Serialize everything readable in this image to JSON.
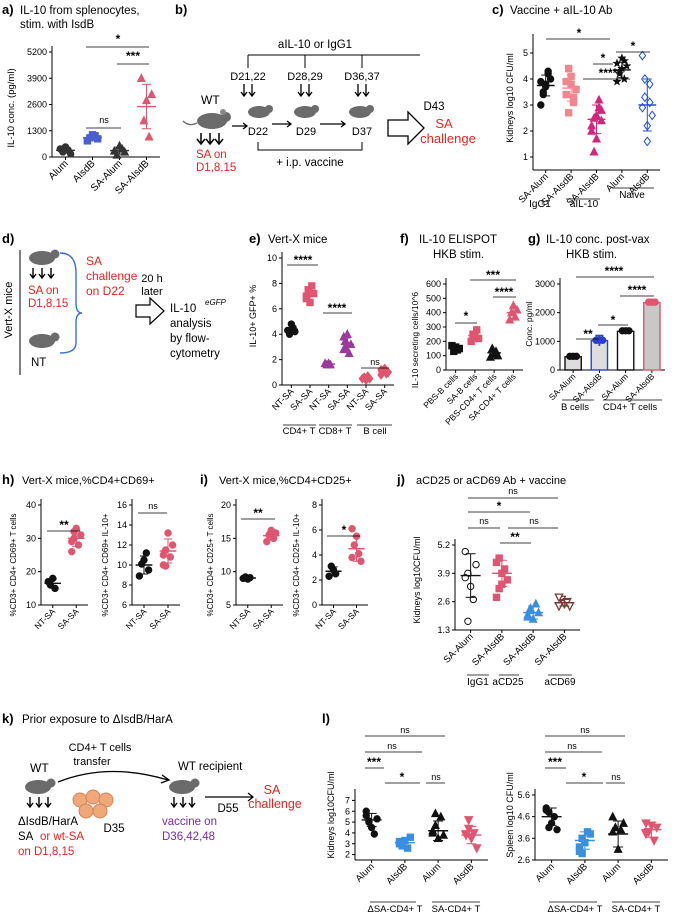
{
  "panels": {
    "a": {
      "letter": "a)",
      "title_l1": "IL-10 from splenocytes,",
      "title_l2": "stim. with IsdB",
      "ylabel": "IL-10 conc. (pg/ml)",
      "cats": [
        "Alum",
        "AIsdB",
        "SA-Alum",
        "SA-AIsdB"
      ],
      "sig": [
        "ns",
        "*",
        "***"
      ]
    },
    "b": {
      "letter": "b)",
      "wt": "WT",
      "sa_on": "SA on",
      "sa_days": "D1,8,15",
      "ab": "aIL-10 or IgG1",
      "inj_days": [
        "D21,22",
        "D28,29",
        "D36,37"
      ],
      "vax_days": [
        "D22",
        "D29",
        "D37"
      ],
      "d43": "D43",
      "challenge_l1": "SA",
      "challenge_l2": "challenge",
      "vaccine": "+ i.p. vaccine"
    },
    "c": {
      "letter": "c)",
      "title": "Vaccine + aIL-10 Ab",
      "ylabel": "Kidneys log10 CFU/ml",
      "cats": [
        "SA-Alum",
        "SA-AIsdB",
        "SA-AIsdB",
        "Alum",
        "AIsdB"
      ],
      "groups": [
        "IgG1",
        "aIL-10",
        "Naive"
      ],
      "sig": [
        "*",
        "*",
        "****",
        "*"
      ]
    },
    "d": {
      "letter": "d)",
      "side": "Vert-X mice",
      "sa_on": "SA on",
      "sa_days": "D1,8,15",
      "nt": "NT",
      "challenge_l1": "SA",
      "challenge_l2": "challenge",
      "challenge_l3": "on D22",
      "later_l1": "20 h",
      "later_l2": "later",
      "il10": "IL-10",
      "egfp": "eGFP",
      "analysis": [
        "analysis",
        "by flow-",
        "cytometry"
      ]
    },
    "e": {
      "letter": "e)",
      "title": "Vert-X mice",
      "ylabel": "IL-10+ GFP+ %",
      "cats": [
        "NT-SA",
        "SA-SA",
        "NT-SA",
        "SA-SA",
        "NT-SA",
        "SA-SA"
      ],
      "groups": [
        "CD4+ T",
        "CD8+ T",
        "B cell"
      ],
      "sig": [
        "****",
        "****",
        "ns"
      ]
    },
    "f": {
      "letter": "f)",
      "title_l1": "IL-10 ELISPOT",
      "title_l2": "HKB stim.",
      "ylabel": "IL-10 secreting cells/10^6",
      "cats": [
        "PBS-B cells",
        "SA-B cells",
        "PBS-CD4+ T cells",
        "SA-CD4+ T cells"
      ],
      "sig": [
        "*",
        "***",
        "****"
      ]
    },
    "g": {
      "letter": "g)",
      "title_l1": "IL-10 conc. post-vax",
      "title_l2": "HKB stim.",
      "ylabel": "Conc. pg/ml",
      "cats": [
        "SA-Alum",
        "SA-AIsdB",
        "SA-Alum",
        "SA-AIsdB"
      ],
      "groups": [
        "B cells",
        "CD4+ T cells"
      ],
      "sig": [
        "**",
        "*",
        "****",
        "****"
      ]
    },
    "h": {
      "letter": "h)",
      "title": "Vert-X mice,%CD4+CD69+",
      "ylabel1": "%CD3+ CD4+ CD69+ T cells",
      "ylabel2": "%CD3+ CD4+ CD69+ IL-10+",
      "cats": [
        "NT-SA",
        "SA-SA"
      ],
      "sig": [
        "**",
        "ns"
      ]
    },
    "i": {
      "letter": "i)",
      "title": "Vert-X mice,%CD4+CD25+",
      "ylabel1": "%CD3+ CD4+ CD25+ T cells",
      "ylabel2": "%CD3+ CD4+ CD25+ IL-10+",
      "cats": [
        "NT-SA",
        "SA-SA"
      ],
      "sig": [
        "**",
        "*"
      ]
    },
    "j": {
      "letter": "j)",
      "title": "aCD25 or aCD69 Ab + vaccine",
      "ylabel": "Kidneys log10CFU/ml",
      "cats": [
        "SA-Alum",
        "SA-AIsdB",
        "SA-AIsdB",
        "SA-AIsdB"
      ],
      "groups": [
        "IgG1",
        "aCD25",
        "aCD69"
      ],
      "sig": [
        "ns",
        "*",
        "ns",
        "ns",
        "**"
      ]
    },
    "k": {
      "letter": "k)",
      "title": "Prior exposure to ΔIsdB/HarA",
      "wt": "WT",
      "transfer_l1": "CD4+ T cells",
      "transfer_l2": "transfer",
      "recipient": "WT recipient",
      "donor_l1": "ΔIsdB/HarA",
      "donor_l2a": "SA",
      "donor_l2b": "or wt-SA",
      "donor_l3": "on D1,8,15",
      "d35": "D35",
      "vaccine_l1": "vaccine on",
      "vaccine_l2": "D36,42,48",
      "d55": "D55",
      "challenge_l1": "SA",
      "challenge_l2": "challenge"
    },
    "l": {
      "letter": "l)",
      "ylabel1": "Kidneys log10CFU/ml",
      "ylabel2": "Spleen log10 CFU/ml",
      "cats": [
        "Alum",
        "AIsdB",
        "Alum",
        "AIsdB"
      ],
      "groups": [
        "ΔSA-CD4+ T",
        "SA-CD4+ T"
      ],
      "sig": [
        "ns",
        "ns",
        "***",
        "*",
        "ns"
      ]
    }
  },
  "chart_data": [
    {
      "panel": "a",
      "type": "scatter",
      "ylim": [
        0,
        5200
      ],
      "yticks": [
        0,
        1300,
        2600,
        3900,
        5200
      ],
      "categories": [
        "Alum",
        "AIsdB",
        "SA-Alum",
        "SA-AIsdB"
      ],
      "colors": [
        "#333333",
        "#4a5fd0",
        "#333333",
        "#e05570"
      ],
      "markers": [
        "circle",
        "square",
        "triangle",
        "triangle"
      ],
      "points": [
        [
          400,
          250,
          500,
          350,
          150
        ],
        [
          800,
          950,
          1100,
          1050,
          900
        ],
        [
          300,
          100,
          550,
          400,
          250
        ],
        [
          3900,
          1800,
          2800,
          1000,
          3100
        ]
      ],
      "means": [
        330,
        960,
        320,
        2500
      ],
      "sds": [
        140,
        120,
        170,
        1100
      ]
    },
    {
      "panel": "c",
      "type": "scatter",
      "ylim": [
        0.5,
        5.5
      ],
      "yticks": [
        1,
        2,
        3,
        4,
        5
      ],
      "categories": [
        "SA-Alum",
        "SA-AIsdB",
        "SA-AIsdB",
        "Alum",
        "AIsdB"
      ],
      "colors": [
        "#111111",
        "#f2868f",
        "#d6247d",
        "#111111",
        "#1f4fe0"
      ],
      "markers": [
        "circle",
        "square",
        "triangle",
        "star",
        "diamond"
      ],
      "points": [
        [
          3.9,
          3.4,
          3.7,
          4.3,
          4.0,
          3.0,
          3.5,
          3.8,
          4.2
        ],
        [
          3.4,
          4.4,
          3.8,
          3.1,
          3.6,
          3.9,
          2.7,
          4.1,
          3.3
        ],
        [
          2.0,
          2.5,
          1.7,
          3.2,
          2.8,
          2.2,
          1.2,
          2.6,
          2.9,
          2.4
        ],
        [
          4.6,
          4.3,
          4.8,
          4.0,
          4.5,
          3.9,
          4.2,
          4.4,
          4.7
        ],
        [
          4.9,
          3.3,
          2.2,
          3.8,
          2.6,
          2.9,
          4.0,
          1.6,
          3.1
        ]
      ],
      "means": [
        3.75,
        3.65,
        2.45,
        4.35,
        3.0
      ],
      "sds": [
        0.4,
        0.5,
        0.55,
        0.3,
        1.0
      ]
    },
    {
      "panel": "e",
      "type": "scatter",
      "ylim": [
        0,
        10
      ],
      "yticks": [
        0,
        2,
        4,
        6,
        8,
        10
      ],
      "categories": [
        "NT-SA",
        "SA-SA",
        "NT-SA",
        "SA-SA",
        "NT-SA",
        "SA-SA"
      ],
      "colors": [
        "#111111",
        "#e05570",
        "#9a3a9a",
        "#9a3a9a",
        "#e05570",
        "#e05570"
      ],
      "markers": [
        "circle",
        "square",
        "triangle",
        "triangle",
        "diamond",
        "diamond"
      ],
      "points": [
        [
          4.3,
          4.0,
          4.8,
          4.5,
          4.2
        ],
        [
          7.0,
          7.5,
          6.5,
          7.8,
          7.2,
          6.8
        ],
        [
          1.7,
          1.6,
          1.7,
          1.6
        ],
        [
          2.8,
          3.5,
          4.0,
          2.5,
          3.2,
          3.8,
          3.0
        ],
        [
          0.5,
          0.6,
          0.4,
          0.7,
          0.5
        ],
        [
          0.8,
          1.1,
          1.3,
          0.9,
          1.0,
          1.2
        ]
      ],
      "means": [
        4.4,
        7.1,
        1.65,
        3.2,
        0.55,
        1.05
      ],
      "sds": [
        0.3,
        0.5,
        0.05,
        0.5,
        0.1,
        0.2
      ]
    },
    {
      "panel": "f",
      "type": "scatter",
      "ylim": [
        0,
        600
      ],
      "yticks": [
        0,
        100,
        200,
        300,
        400,
        500,
        600
      ],
      "categories": [
        "PBS-B cells",
        "SA-B cells",
        "PBS-CD4+ T cells",
        "SA-CD4+ T cells"
      ],
      "colors": [
        "#111111",
        "#e05570",
        "#111111",
        "#e05570"
      ],
      "markers": [
        "square",
        "square",
        "triangle",
        "triangle"
      ],
      "points": [
        [
          170,
          130,
          160,
          140,
          150
        ],
        [
          200,
          250,
          240,
          280,
          220
        ],
        [
          90,
          150,
          110,
          130,
          100
        ],
        [
          350,
          400,
          450,
          370,
          420
        ]
      ],
      "means": [
        150,
        240,
        120,
        400
      ],
      "sds": [
        20,
        30,
        25,
        40
      ]
    },
    {
      "panel": "g",
      "type": "bar",
      "ylim": [
        0,
        3000
      ],
      "yticks": [
        0,
        1000,
        2000,
        3000
      ],
      "categories": [
        "SA-Alum",
        "SA-AIsdB",
        "SA-Alum",
        "SA-AIsdB"
      ],
      "fills": [
        "#dddddd",
        "#dddddd",
        "#ffffff",
        "#c8c8c8"
      ],
      "colors": [
        "#111111",
        "#2a3fd0",
        "#111111",
        "#e05570"
      ],
      "values": [
        460,
        1020,
        1350,
        2350
      ],
      "sds": [
        40,
        180,
        80,
        60
      ]
    },
    {
      "panel": "h1",
      "type": "scatter",
      "ylim": [
        10,
        40
      ],
      "yticks": [
        10,
        20,
        30,
        40
      ],
      "categories": [
        "NT-SA",
        "SA-SA"
      ],
      "colors": [
        "#111111",
        "#e05570"
      ],
      "points": [
        [
          17,
          16,
          18,
          15
        ],
        [
          26,
          30,
          33,
          28,
          31,
          29,
          32
        ]
      ],
      "means": [
        16.5,
        30
      ],
      "sds": [
        1.3,
        2.5
      ]
    },
    {
      "panel": "h2",
      "type": "scatter",
      "ylim": [
        6,
        16
      ],
      "yticks": [
        6,
        8,
        10,
        12,
        14,
        16
      ],
      "categories": [
        "NT-SA",
        "SA-SA"
      ],
      "colors": [
        "#111111",
        "#e05570"
      ],
      "points": [
        [
          8.9,
          10.1,
          10.5,
          11.2,
          9.5
        ],
        [
          10.0,
          11.5,
          13.2,
          10.8,
          12.0,
          11.0,
          9.9
        ]
      ],
      "means": [
        10.0,
        11.4
      ],
      "sds": [
        0.9,
        1.2
      ]
    },
    {
      "panel": "i1",
      "type": "scatter",
      "ylim": [
        5,
        20
      ],
      "yticks": [
        5,
        10,
        15,
        20
      ],
      "categories": [
        "NT-SA",
        "SA-SA"
      ],
      "colors": [
        "#111111",
        "#e05570"
      ],
      "points": [
        [
          9.0,
          9.2,
          8.9,
          9.1
        ],
        [
          14.5,
          15.5,
          16.2,
          15.0,
          15.8
        ]
      ],
      "means": [
        9.05,
        15.4
      ],
      "sds": [
        0.15,
        0.6
      ]
    },
    {
      "panel": "i2",
      "type": "scatter",
      "ylim": [
        0,
        8
      ],
      "yticks": [
        0,
        2,
        4,
        6,
        8
      ],
      "categories": [
        "NT-SA",
        "SA-SA"
      ],
      "colors": [
        "#111111",
        "#e05570"
      ],
      "points": [
        [
          2.3,
          3.1,
          2.8,
          2.5
        ],
        [
          3.8,
          4.8,
          5.5,
          4.1,
          3.5,
          6.1
        ]
      ],
      "means": [
        2.7,
        4.5
      ],
      "sds": [
        0.35,
        1.0
      ]
    },
    {
      "panel": "j",
      "type": "scatter",
      "ylim": [
        1.3,
        5.2
      ],
      "yticks": [
        1.3,
        2.6,
        3.9,
        5.2
      ],
      "categories": [
        "SA-Alum",
        "SA-AIsdB",
        "SA-AIsdB",
        "SA-AIsdB"
      ],
      "colors": [
        "#111111",
        "#e05570",
        "#3a8fe0",
        "#7a3a3a"
      ],
      "markers": [
        "circle",
        "square",
        "triangle",
        "triangle-down"
      ],
      "points": [
        [
          4.9,
          3.9,
          3.3,
          2.7,
          4.3,
          3.7,
          1.7
        ],
        [
          4.4,
          3.2,
          3.9,
          4.1,
          3.6,
          2.8,
          4.6,
          3.4
        ],
        [
          2.0,
          2.2,
          1.8,
          2.5,
          2.1,
          1.9,
          2.3
        ],
        [
          2.4,
          2.7,
          2.5,
          2.6,
          2.4,
          2.8
        ]
      ],
      "means": [
        3.8,
        3.9,
        2.1,
        2.55
      ],
      "sds": [
        1.0,
        0.6,
        0.3,
        0.15
      ]
    },
    {
      "panel": "l1",
      "type": "scatter",
      "ylim": [
        1.5,
        7.5
      ],
      "yticks": [
        2,
        3,
        4,
        5,
        6,
        7
      ],
      "categories": [
        "Alum",
        "AIsdB",
        "Alum",
        "AIsdB"
      ],
      "colors": [
        "#111111",
        "#3a8fe0",
        "#111111",
        "#e05570"
      ],
      "markers": [
        "circle",
        "square",
        "triangle",
        "triangle-down"
      ],
      "points": [
        [
          5.6,
          5.1,
          4.5,
          3.9,
          5.3,
          6.0,
          5.0
        ],
        [
          3.0,
          2.8,
          3.3,
          2.6,
          3.6,
          3.2,
          3.1
        ],
        [
          4.2,
          5.8,
          3.5,
          5.5,
          3.8,
          4.0,
          4.7
        ],
        [
          3.8,
          4.4,
          3.5,
          4.0,
          2.6,
          3.9,
          5.2,
          3.6
        ]
      ],
      "means": [
        5.2,
        3.1,
        4.2,
        3.8
      ],
      "sds": [
        0.6,
        0.3,
        0.9,
        0.8
      ]
    },
    {
      "panel": "l2",
      "type": "scatter",
      "ylim": [
        2.6,
        5.6
      ],
      "yticks": [
        2.6,
        3.6,
        4.6,
        5.6
      ],
      "categories": [
        "Alum",
        "AIsdB",
        "Alum",
        "AIsdB"
      ],
      "colors": [
        "#111111",
        "#3a8fe0",
        "#111111",
        "#e05570"
      ],
      "markers": [
        "circle",
        "square",
        "triangle",
        "triangle-down"
      ],
      "points": [
        [
          5.0,
          4.8,
          4.3,
          4.6,
          4.0,
          4.9,
          4.1
        ],
        [
          3.0,
          3.6,
          3.4,
          3.9,
          3.8,
          3.2,
          2.9
        ],
        [
          4.6,
          4.1,
          3.1,
          4.0,
          4.3,
          3.9
        ],
        [
          4.3,
          3.9,
          4.2,
          3.5,
          4.1,
          3.8
        ]
      ],
      "means": [
        4.6,
        3.5,
        3.8,
        4.0
      ],
      "sds": [
        0.4,
        0.4,
        0.6,
        0.35
      ]
    }
  ]
}
